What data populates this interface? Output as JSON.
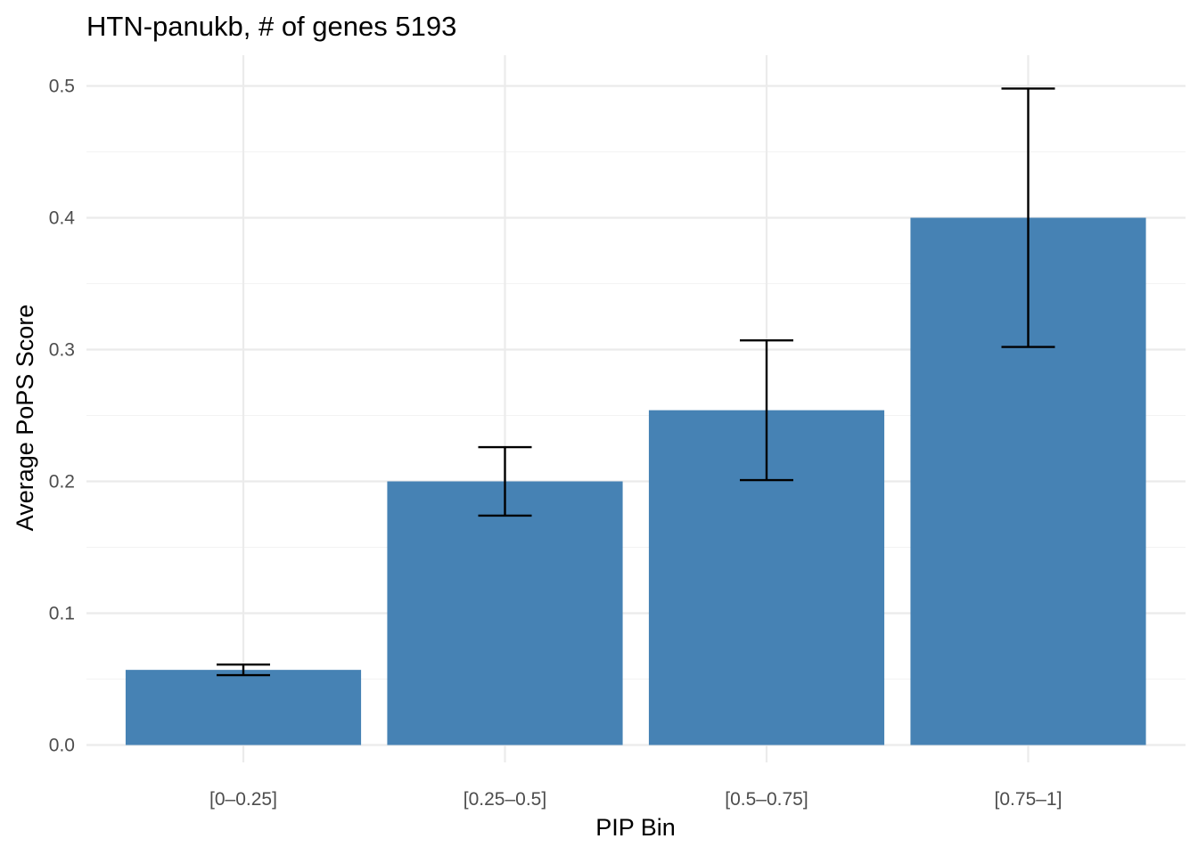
{
  "chart_data": {
    "type": "bar",
    "title": "HTN-panukb, # of genes 5193",
    "xlabel": "PIP Bin",
    "ylabel": "Average PoPS Score",
    "categories": [
      "[0–0.25]",
      "[0.25–0.5]",
      "[0.5–0.75]",
      "[0.75–1]"
    ],
    "values": [
      0.057,
      0.2,
      0.254,
      0.4
    ],
    "error_low": [
      0.053,
      0.174,
      0.201,
      0.302
    ],
    "error_high": [
      0.061,
      0.226,
      0.307,
      0.498
    ],
    "ylim": [
      -0.02,
      0.52
    ],
    "yticks": [
      0.0,
      0.1,
      0.2,
      0.3,
      0.4,
      0.5
    ],
    "ytick_labels": [
      "0.0",
      "0.1",
      "0.2",
      "0.3",
      "0.4",
      "0.5"
    ],
    "bar_color": "#4682b4",
    "error_color": "#000000",
    "grid": true,
    "legend": "none"
  }
}
